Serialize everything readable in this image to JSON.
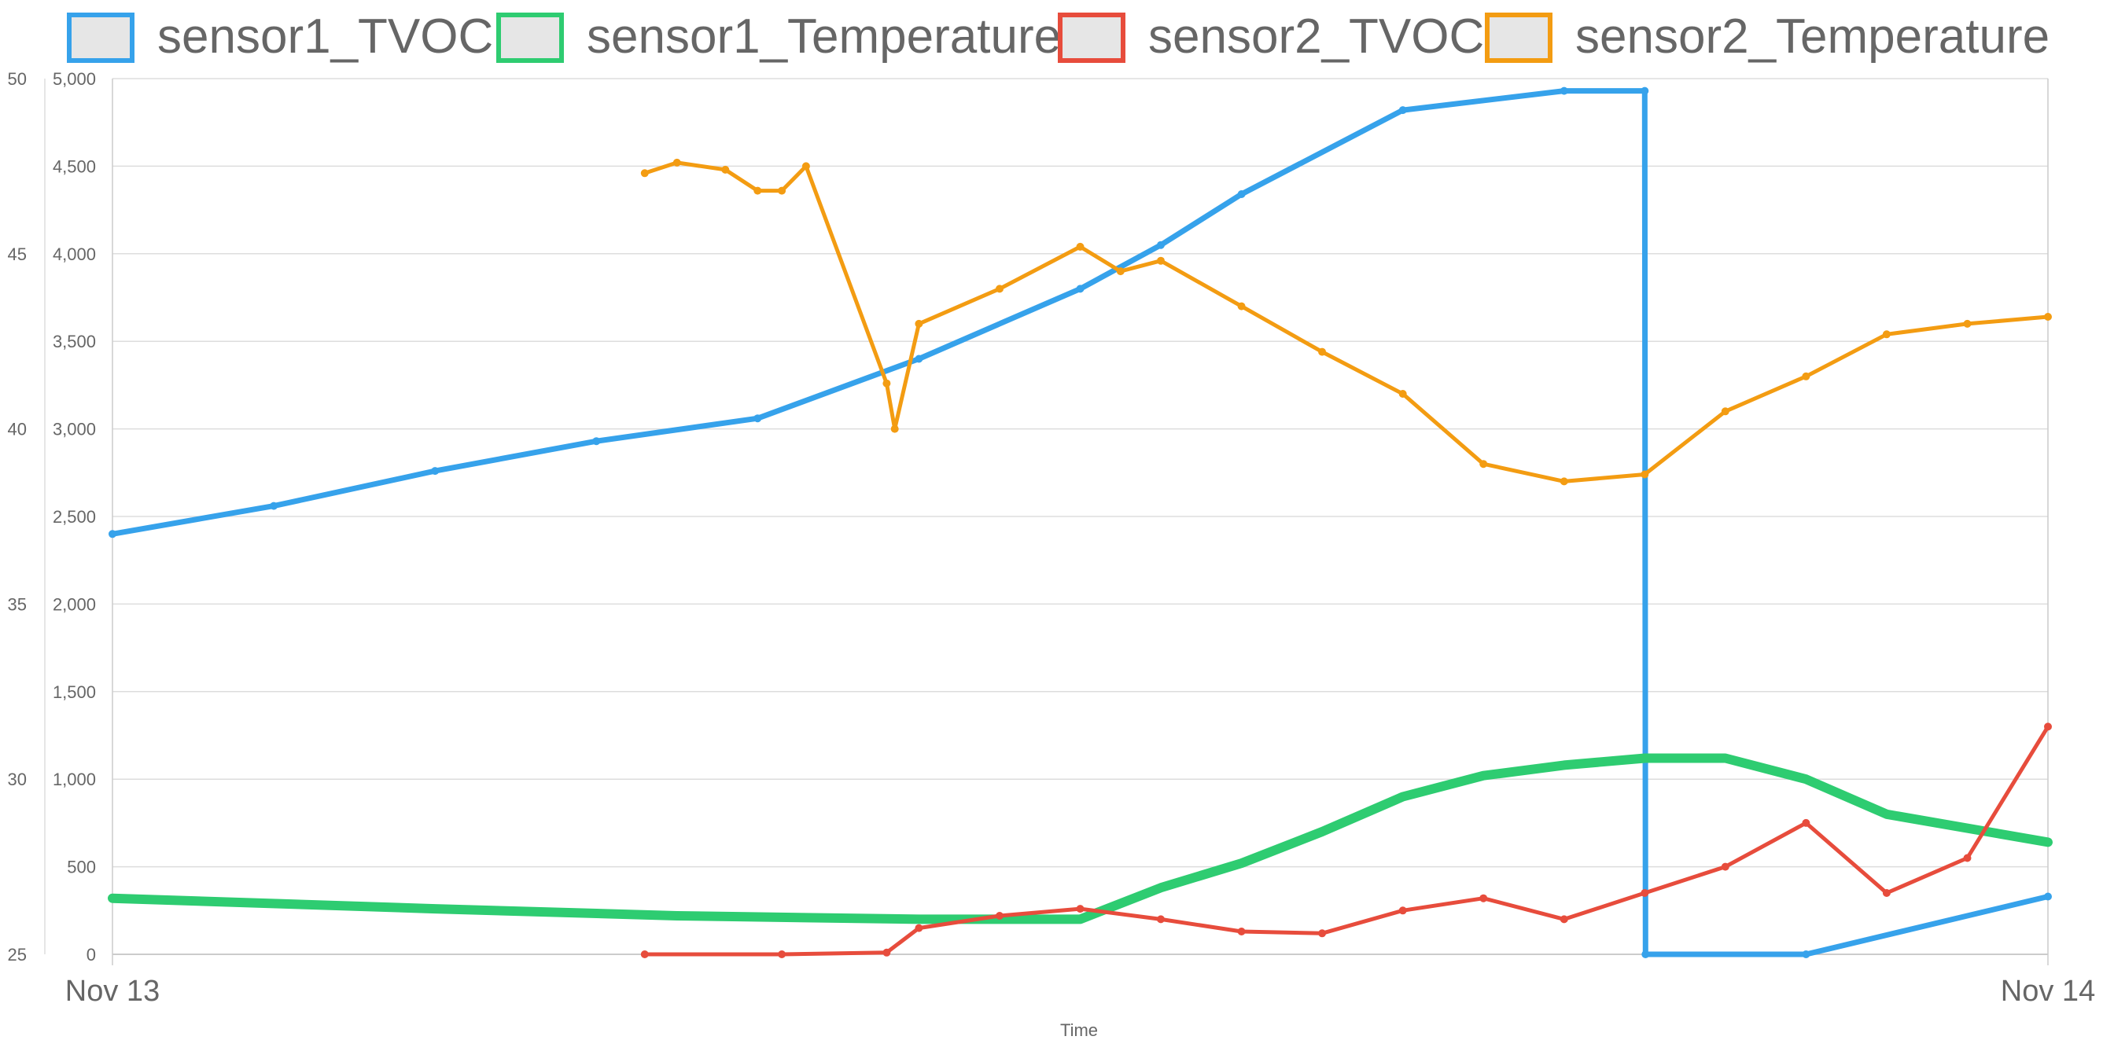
{
  "chart_data": {
    "type": "line",
    "xlabel": "Time",
    "x_ticks": [
      "Nov 13",
      "Nov 14"
    ],
    "x_range_hours": [
      0,
      24
    ],
    "y_left": {
      "range": [
        25,
        50
      ],
      "ticks": [
        "25",
        "30",
        "35",
        "40",
        "45",
        "50"
      ]
    },
    "y_right": {
      "range": [
        0,
        5000
      ],
      "ticks": [
        "0",
        "500",
        "1,000",
        "1,500",
        "2,000",
        "2,500",
        "3,000",
        "3,500",
        "4,000",
        "4,500",
        "5,000"
      ]
    },
    "grid": true,
    "legend_position": "top",
    "series": [
      {
        "name": "sensor1_TVOC",
        "color": "#36a2eb",
        "axis": "right",
        "x": [
          0,
          2,
          4,
          6,
          8,
          10,
          12,
          13,
          14,
          16,
          18,
          19,
          19.01,
          21,
          24
        ],
        "values": [
          2400,
          2560,
          2760,
          2930,
          3060,
          3400,
          3800,
          4050,
          4340,
          4820,
          4930,
          4930,
          0,
          0,
          330
        ]
      },
      {
        "name": "sensor1_Temperature",
        "color": "#2ecc71",
        "axis": "left",
        "x": [
          0,
          4,
          7,
          10,
          12,
          13,
          14,
          15,
          16,
          17,
          18,
          19,
          20,
          21,
          22,
          24
        ],
        "values": [
          26.6,
          26.3,
          26.1,
          26.0,
          26.0,
          26.9,
          27.6,
          28.5,
          29.5,
          30.1,
          30.4,
          30.6,
          30.6,
          30.0,
          29.0,
          28.2
        ]
      },
      {
        "name": "sensor2_TVOC",
        "color": "#e74c3c",
        "axis": "right",
        "x": [
          6.6,
          8.3,
          9.6,
          10,
          11,
          12,
          13,
          14,
          15,
          16,
          17,
          18,
          19,
          20,
          21,
          22,
          23,
          24
        ],
        "values": [
          0,
          0,
          10,
          150,
          220,
          260,
          200,
          130,
          120,
          250,
          320,
          200,
          350,
          500,
          750,
          350,
          550,
          1300
        ]
      },
      {
        "name": "sensor2_Temperature",
        "color": "#f39c12",
        "axis": "left",
        "x": [
          6.6,
          7,
          7.6,
          8,
          8.3,
          8.6,
          9.6,
          9.7,
          10,
          11,
          12,
          12.5,
          13,
          14,
          15,
          16,
          17,
          18,
          19,
          20,
          21,
          22,
          23,
          24
        ],
        "values": [
          47.3,
          47.6,
          47.4,
          46.8,
          46.8,
          47.5,
          41.3,
          40.0,
          43.0,
          44.0,
          45.2,
          44.5,
          44.8,
          43.5,
          42.2,
          41.0,
          39.0,
          38.5,
          38.7,
          40.5,
          41.5,
          42.7,
          43.0,
          43.2
        ]
      }
    ]
  }
}
